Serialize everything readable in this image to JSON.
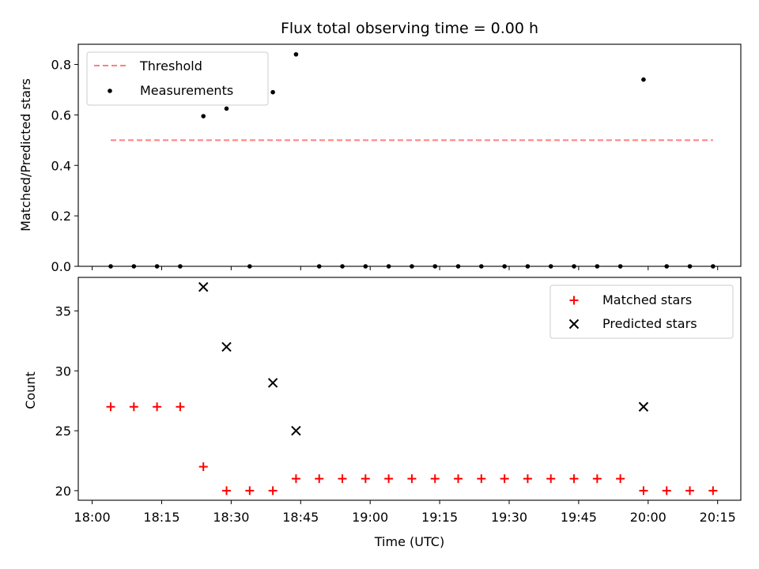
{
  "chart_data": [
    {
      "type": "scatter",
      "title": "Flux total observing time = 0.00 h",
      "xlabel": "",
      "ylabel": "Matched/Predicted stars",
      "xlim_minutes": [
        1077,
        1220
      ],
      "ylim": [
        0,
        0.88
      ],
      "y_ticks": [
        0.0,
        0.2,
        0.4,
        0.6,
        0.8
      ],
      "y_tick_labels": [
        "0.0",
        "0.2",
        "0.4",
        "0.6",
        "0.8"
      ],
      "grid": false,
      "legend_location": "top-left",
      "threshold": {
        "name": "Threshold",
        "value": 0.5,
        "x_start": "18:04",
        "x_end": "20:14",
        "color": "#ff7f7f",
        "style": "dashed"
      },
      "measurements": {
        "name": "Measurements",
        "color": "#000000",
        "x": [
          "18:04",
          "18:09",
          "18:14",
          "18:19",
          "18:24",
          "18:29",
          "18:34",
          "18:39",
          "18:44",
          "18:49",
          "18:54",
          "18:59",
          "19:04",
          "19:09",
          "19:14",
          "19:19",
          "19:24",
          "19:29",
          "19:34",
          "19:39",
          "19:44",
          "19:49",
          "19:54",
          "19:59",
          "20:04",
          "20:09",
          "20:14"
        ],
        "y": [
          0.0,
          0.0,
          0.0,
          0.0,
          0.595,
          0.625,
          0.0,
          0.69,
          0.84,
          0.0,
          0.0,
          0.0,
          0.0,
          0.0,
          0.0,
          0.0,
          0.0,
          0.0,
          0.0,
          0.0,
          0.0,
          0.0,
          0.0,
          0.74,
          0.0,
          0.0,
          0.0
        ]
      }
    },
    {
      "type": "scatter",
      "title": "",
      "xlabel": "Time (UTC)",
      "ylabel": "Count",
      "xlim_minutes": [
        1077,
        1220
      ],
      "ylim": [
        19.2,
        37.8
      ],
      "y_ticks": [
        20,
        25,
        30,
        35
      ],
      "y_tick_labels": [
        "20",
        "25",
        "30",
        "35"
      ],
      "x_ticks": [
        "18:00",
        "18:15",
        "18:30",
        "18:45",
        "19:00",
        "19:15",
        "19:30",
        "19:45",
        "20:00",
        "20:15"
      ],
      "grid": false,
      "legend_location": "top-right",
      "series": [
        {
          "name": "Matched stars",
          "marker": "plus",
          "color": "#ff0000",
          "x": [
            "18:04",
            "18:09",
            "18:14",
            "18:19",
            "18:24",
            "18:29",
            "18:34",
            "18:39",
            "18:44",
            "18:49",
            "18:54",
            "18:59",
            "19:04",
            "19:09",
            "19:14",
            "19:19",
            "19:24",
            "19:29",
            "19:34",
            "19:39",
            "19:44",
            "19:49",
            "19:54",
            "19:59",
            "20:04",
            "20:09",
            "20:14"
          ],
          "y": [
            27,
            27,
            27,
            27,
            22,
            20,
            20,
            20,
            21,
            21,
            21,
            21,
            21,
            21,
            21,
            21,
            21,
            21,
            21,
            21,
            21,
            21,
            21,
            20,
            20,
            20,
            20
          ]
        },
        {
          "name": "Predicted stars",
          "marker": "x",
          "color": "#000000",
          "x": [
            "18:24",
            "18:29",
            "18:39",
            "18:44",
            "19:59"
          ],
          "y": [
            37,
            32,
            29,
            25,
            27
          ]
        }
      ]
    }
  ]
}
